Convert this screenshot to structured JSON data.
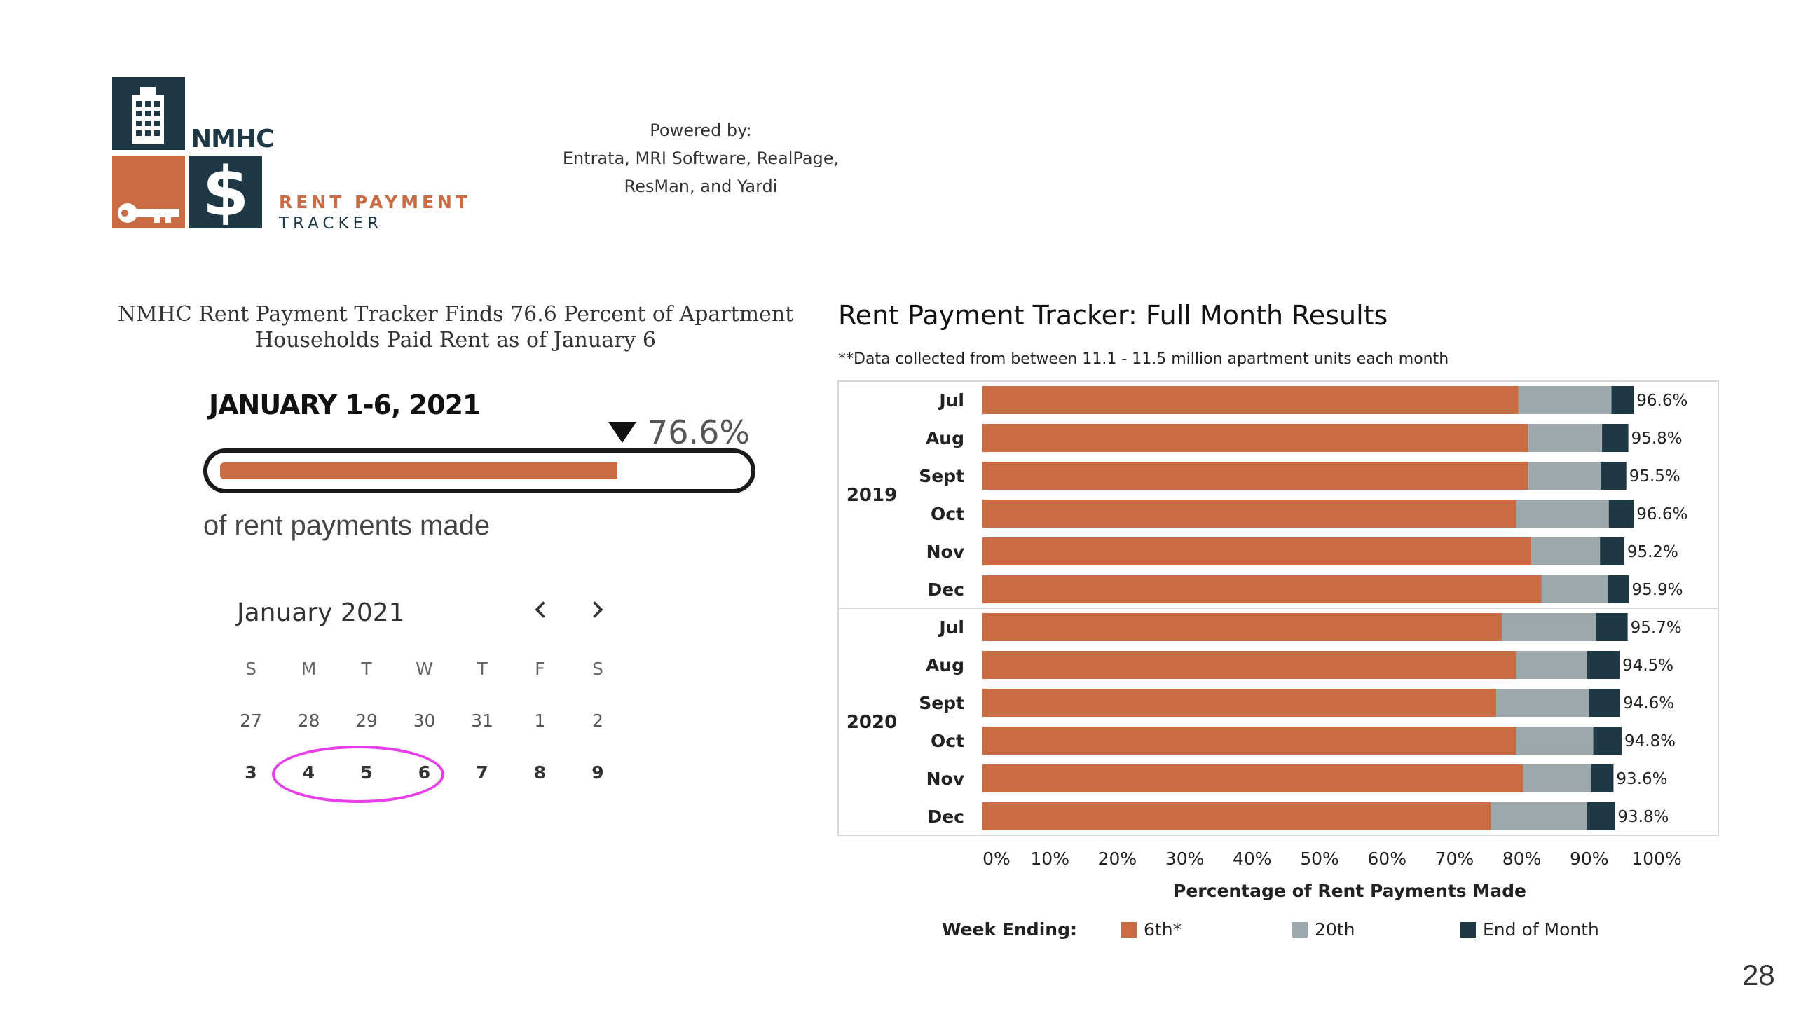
{
  "logo": {
    "nmhc": "NMHC",
    "dollar": "$",
    "line1": "RENT PAYMENT",
    "line2": "TRACKER"
  },
  "powered_by": [
    "Powered by:",
    "Entrata, MRI Software, RealPage,",
    "ResMan, and Yardi"
  ],
  "headline": [
    "NMHC Rent Payment Tracker Finds 76.6 Percent of Apartment",
    "Households Paid Rent as of January 6"
  ],
  "progress": {
    "title": "JANUARY 1-6, 2021",
    "value_label": "76.6%",
    "value": 76.6,
    "caption": "of rent payments made"
  },
  "calendar": {
    "month_label": "January 2021",
    "weekdays": [
      "S",
      "M",
      "T",
      "W",
      "T",
      "F",
      "S"
    ],
    "weeks": [
      [
        "27",
        "28",
        "29",
        "30",
        "31",
        "1",
        "2"
      ],
      [
        "3",
        "4",
        "5",
        "6",
        "7",
        "8",
        "9"
      ]
    ],
    "highlighted": [
      "4",
      "5",
      "6"
    ]
  },
  "colors": {
    "sixth": "#c96c43",
    "twentieth": "#9da8ac",
    "end_of_month": "#1f3845",
    "highlight": "#e83ee8"
  },
  "chart_data": {
    "type": "bar",
    "orientation": "horizontal",
    "stacked": true,
    "title": "Rent Payment Tracker: Full Month Results",
    "subtitle": "**Data collected from between 11.1 - 11.5 million apartment units each month",
    "xlabel": "Percentage of Rent Payments Made",
    "xlim": [
      0,
      100
    ],
    "x_ticks": [
      "0%",
      "10%",
      "20%",
      "30%",
      "40%",
      "50%",
      "60%",
      "70%",
      "80%",
      "90%",
      "100%"
    ],
    "groups": [
      {
        "label": "2019",
        "categories": [
          "Jul",
          "Aug",
          "Sept",
          "Oct",
          "Nov",
          "Dec"
        ]
      },
      {
        "label": "2020",
        "categories": [
          "Jul",
          "Aug",
          "Sept",
          "Oct",
          "Nov",
          "Dec"
        ]
      }
    ],
    "series": [
      {
        "name": "6th*",
        "values": [
          79.5,
          81.0,
          81.0,
          79.2,
          81.3,
          82.9,
          77.1,
          79.2,
          76.2,
          79.2,
          80.2,
          75.4
        ]
      },
      {
        "name": "20th",
        "values": [
          13.8,
          10.9,
          10.7,
          13.7,
          10.3,
          9.9,
          13.9,
          10.5,
          13.8,
          11.4,
          10.1,
          14.3
        ]
      },
      {
        "name": "End of Month",
        "values": [
          3.3,
          3.9,
          3.8,
          3.7,
          3.6,
          3.1,
          4.7,
          4.8,
          4.6,
          4.2,
          3.3,
          4.1
        ]
      }
    ],
    "totals": [
      "96.6%",
      "95.8%",
      "95.5%",
      "96.6%",
      "95.2%",
      "95.9%",
      "95.7%",
      "94.5%",
      "94.6%",
      "94.8%",
      "93.6%",
      "93.8%"
    ],
    "legend": {
      "title": "Week Ending:",
      "position": "bottom"
    }
  },
  "page_number": "28"
}
